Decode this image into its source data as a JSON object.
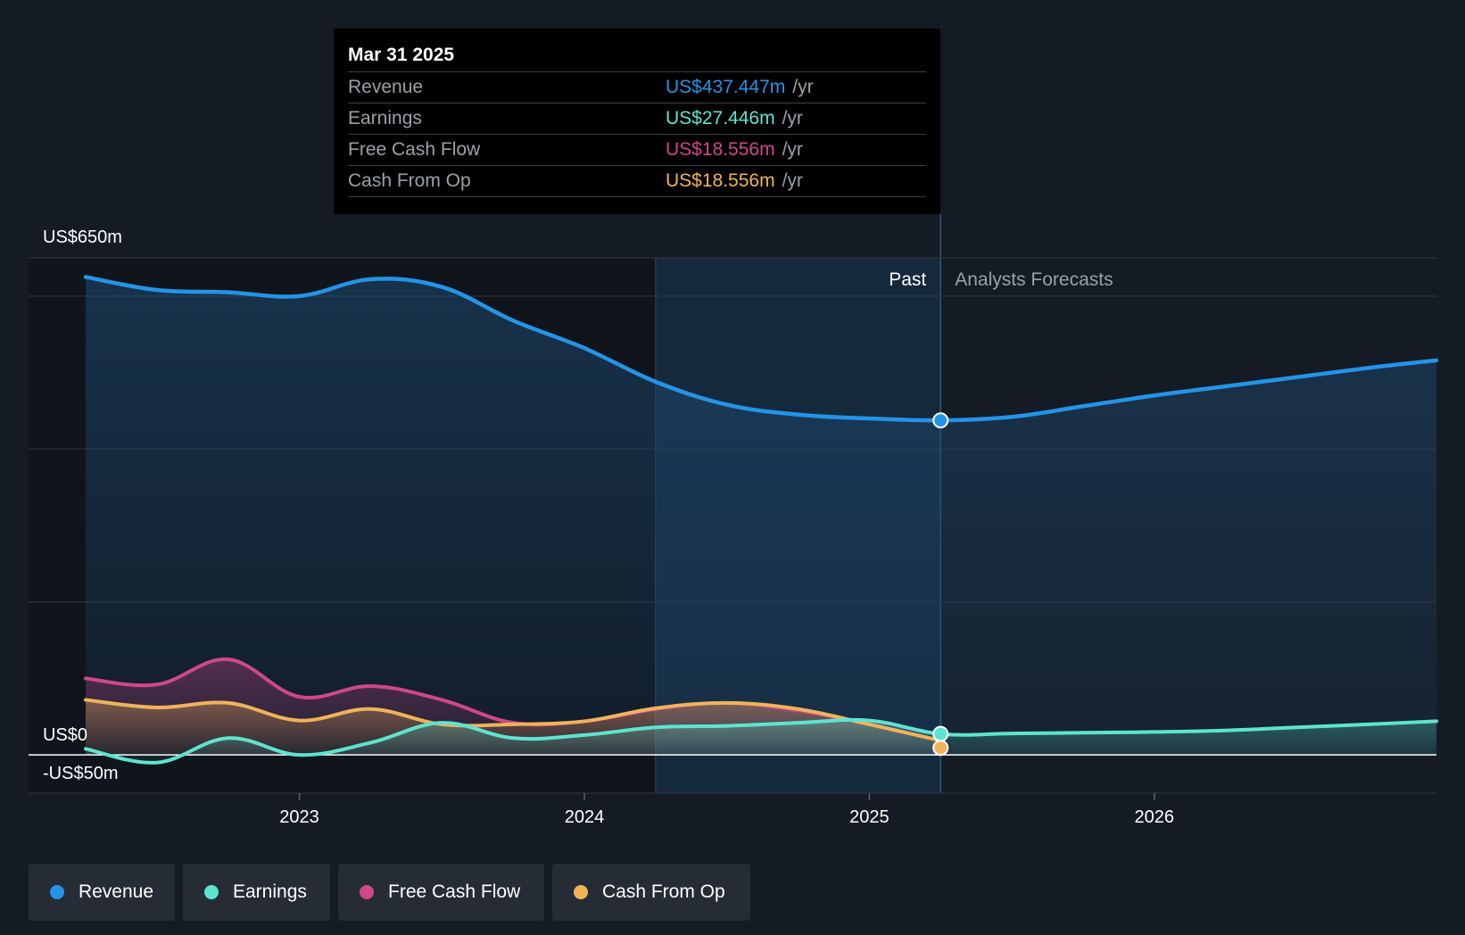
{
  "colors": {
    "revenue": "#2394e8",
    "earnings": "#5de4d0",
    "free_cash_flow": "#d0478a",
    "cash_from_op": "#f0b35a",
    "background": "#151b24",
    "past_background": "#1b3048",
    "grid": "#2c333c"
  },
  "tooltip": {
    "date": "Mar 31 2025",
    "rows": [
      {
        "label": "Revenue",
        "value": "US$437.447m",
        "unit": "/yr",
        "color": "#2394e8"
      },
      {
        "label": "Earnings",
        "value": "US$27.446m",
        "unit": "/yr",
        "color": "#5de4d0"
      },
      {
        "label": "Free Cash Flow",
        "value": "US$18.556m",
        "unit": "/yr",
        "color": "#d0478a"
      },
      {
        "label": "Cash From Op",
        "value": "US$18.556m",
        "unit": "/yr",
        "color": "#f0b35a"
      }
    ]
  },
  "legend": [
    {
      "label": "Revenue",
      "color": "#2394e8"
    },
    {
      "label": "Earnings",
      "color": "#5de4d0"
    },
    {
      "label": "Free Cash Flow",
      "color": "#d0478a"
    },
    {
      "label": "Cash From Op",
      "color": "#f0b35a"
    }
  ],
  "chart_data": {
    "type": "line",
    "y_axis_labels": [
      "US$650m",
      "US$0",
      "-US$50m"
    ],
    "ylim": [
      -50,
      650
    ],
    "xlim": [
      2022.0,
      2026.99
    ],
    "x_tick_labels": [
      "2023",
      "2024",
      "2025",
      "2026"
    ],
    "x_ticks": [
      2023.0,
      2024.0,
      2025.0,
      2026.0
    ],
    "past_label": "Past",
    "forecast_label": "Analysts Forecasts",
    "past_forecast_split": 2025.25,
    "highlight_start": 2024.25,
    "series": [
      {
        "name": "Revenue",
        "key": "revenue",
        "points": [
          [
            2022.25,
            625
          ],
          [
            2022.5,
            608
          ],
          [
            2022.75,
            605
          ],
          [
            2023.0,
            600
          ],
          [
            2023.25,
            622
          ],
          [
            2023.5,
            612
          ],
          [
            2023.75,
            568
          ],
          [
            2024.0,
            532
          ],
          [
            2024.25,
            488
          ],
          [
            2024.5,
            458
          ],
          [
            2024.75,
            445
          ],
          [
            2025.0,
            440
          ],
          [
            2025.25,
            437.447
          ],
          [
            2025.5,
            442
          ],
          [
            2025.75,
            456
          ],
          [
            2026.0,
            470
          ],
          [
            2026.25,
            482
          ],
          [
            2026.5,
            494
          ],
          [
            2026.75,
            506
          ],
          [
            2026.99,
            516
          ]
        ]
      },
      {
        "name": "Earnings",
        "key": "earnings",
        "points": [
          [
            2022.25,
            8
          ],
          [
            2022.5,
            -10
          ],
          [
            2022.75,
            22
          ],
          [
            2023.0,
            0
          ],
          [
            2023.25,
            16
          ],
          [
            2023.5,
            42
          ],
          [
            2023.75,
            22
          ],
          [
            2024.0,
            26
          ],
          [
            2024.25,
            36
          ],
          [
            2024.5,
            38
          ],
          [
            2024.75,
            42
          ],
          [
            2025.0,
            45
          ],
          [
            2025.25,
            27.446
          ],
          [
            2025.5,
            28
          ],
          [
            2025.75,
            29
          ],
          [
            2026.0,
            30
          ],
          [
            2026.25,
            32
          ],
          [
            2026.5,
            36
          ],
          [
            2026.75,
            40
          ],
          [
            2026.99,
            44
          ]
        ]
      },
      {
        "name": "Free Cash Flow",
        "key": "free_cash_flow",
        "points": [
          [
            2022.25,
            100
          ],
          [
            2022.5,
            92
          ],
          [
            2022.75,
            125
          ],
          [
            2023.0,
            76
          ],
          [
            2023.25,
            90
          ],
          [
            2023.5,
            72
          ],
          [
            2023.75,
            42
          ],
          [
            2024.0,
            44
          ],
          [
            2024.25,
            60
          ],
          [
            2024.5,
            68
          ],
          [
            2024.75,
            58
          ],
          [
            2025.0,
            40
          ],
          [
            2025.25,
            18.556
          ]
        ]
      },
      {
        "name": "Cash From Op",
        "key": "cash_from_op",
        "points": [
          [
            2022.25,
            72
          ],
          [
            2022.5,
            62
          ],
          [
            2022.75,
            68
          ],
          [
            2023.0,
            45
          ],
          [
            2023.25,
            60
          ],
          [
            2023.5,
            40
          ],
          [
            2023.75,
            40
          ],
          [
            2024.0,
            44
          ],
          [
            2024.25,
            61
          ],
          [
            2024.5,
            68
          ],
          [
            2024.75,
            60
          ],
          [
            2025.0,
            40
          ],
          [
            2025.25,
            18.556
          ]
        ]
      }
    ]
  }
}
